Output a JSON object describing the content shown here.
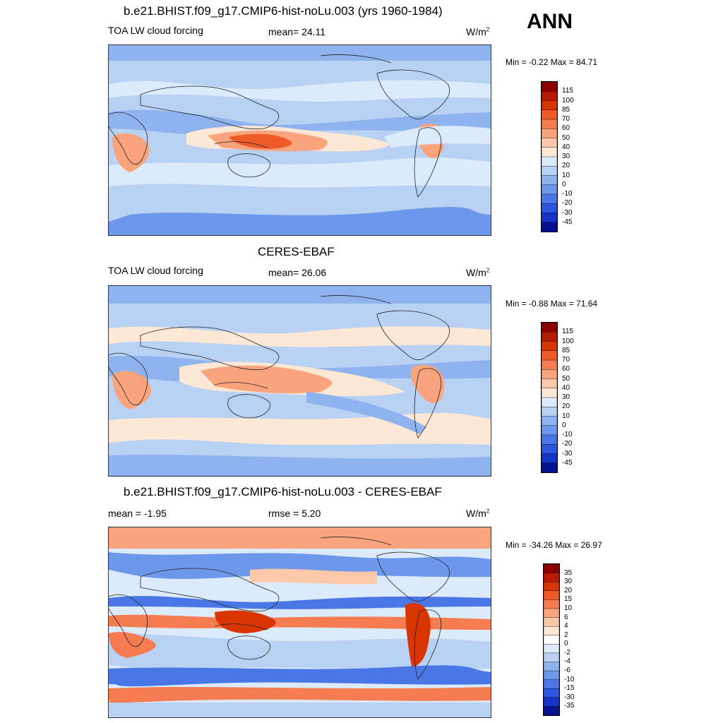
{
  "season": "ANN",
  "chart_data": [
    {
      "type": "heatmap",
      "title": "b.e21.BHIST.f09_g17.CMIP6-hist-noLu.003 (yrs 1960-1984)",
      "left_label": "TOA LW cloud forcing",
      "stat_label": "mean=  24.11",
      "units": "W/m",
      "units_sup": "2",
      "minmax": "Min =  -0.22 Max =  84.71",
      "colorbar": {
        "labels": [
          "115",
          "100",
          "85",
          "70",
          "60",
          "50",
          "40",
          "30",
          "20",
          "10",
          "0",
          "-10",
          "-20",
          "-30",
          "-45"
        ],
        "colors": [
          "#8c0000",
          "#b71c00",
          "#d83500",
          "#ef5a28",
          "#f47c50",
          "#f9a47c",
          "#fcc8aa",
          "#fde8d6",
          "#dcebfb",
          "#b9d2f4",
          "#8fb3ee",
          "#6d97ea",
          "#4b77e6",
          "#2d55df",
          "#1633c8",
          "#05128e"
        ]
      }
    },
    {
      "type": "heatmap",
      "title": "CERES-EBAF",
      "left_label": "TOA LW cloud forcing",
      "stat_label": "mean=  26.06",
      "units": "W/m",
      "units_sup": "2",
      "minmax": "Min =  -0.88 Max =  71.64",
      "colorbar": {
        "labels": [
          "115",
          "100",
          "85",
          "70",
          "60",
          "50",
          "40",
          "30",
          "20",
          "10",
          "0",
          "-10",
          "-20",
          "-30",
          "-45"
        ],
        "colors": [
          "#8c0000",
          "#b71c00",
          "#d83500",
          "#ef5a28",
          "#f47c50",
          "#f9a47c",
          "#fcc8aa",
          "#fde8d6",
          "#dcebfb",
          "#b9d2f4",
          "#8fb3ee",
          "#6d97ea",
          "#4b77e6",
          "#2d55df",
          "#1633c8",
          "#05128e"
        ]
      }
    },
    {
      "type": "heatmap",
      "title": "b.e21.BHIST.f09_g17.CMIP6-hist-noLu.003 - CERES-EBAF",
      "left_label": "mean =  -1.95",
      "stat_label": "rmse =    5.20",
      "units": "W/m",
      "units_sup": "2",
      "minmax": "Min = -34.26 Max =  26.97",
      "colorbar": {
        "labels": [
          "35",
          "30",
          "20",
          "15",
          "10",
          "6",
          "4",
          "2",
          "0",
          "-2",
          "-4",
          "-6",
          "-10",
          "-15",
          "-30",
          "-35"
        ],
        "colors": [
          "#8c0000",
          "#b71c00",
          "#d83500",
          "#ef5a28",
          "#f47c50",
          "#f9a47c",
          "#fcc8aa",
          "#fde8d6",
          "#ffffff",
          "#dcebfb",
          "#b9d2f4",
          "#8fb3ee",
          "#6d97ea",
          "#4b77e6",
          "#2d55df",
          "#1633c8",
          "#05128e"
        ]
      }
    }
  ]
}
